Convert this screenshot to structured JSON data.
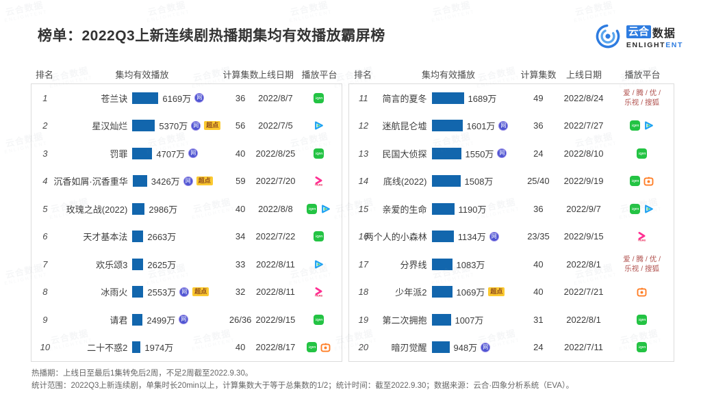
{
  "header": {
    "title": "榜单：2022Q3上新连续剧热播期集均有效播放霸屏榜"
  },
  "logo": {
    "cn_boxed": "云合",
    "cn_plain": "数据",
    "en_dark": "ENLIGHT",
    "en_accent": "ENT"
  },
  "columns": {
    "rank": "排名",
    "plays": "集均有效播放",
    "episodes": "计算集数",
    "date": "上线日期",
    "platform": "播放平台"
  },
  "badge_labels": {
    "net": "网",
    "sp": "超点"
  },
  "platform_labels": {
    "iqiyi": "iQIYI",
    "tencent": "腾讯视频",
    "youku": "YOUKU",
    "mango": "芒果TV"
  },
  "colors": {
    "bar": "#1266ad",
    "accent_blue": "#2e7ce0",
    "badge_net_bg": "#4f55d2",
    "badge_net_border": "#988ce6",
    "badge_sp_bg": "#fbc930",
    "badge_sp_text": "#8d4a1f",
    "platform_text": "#b0504d",
    "iqiyi_green": "#23c343",
    "tencent_blue": "#1fa3f2",
    "tencent_green": "#4ed17a",
    "youku_pink": "#ff2f92",
    "mango_orange": "#ff7e26"
  },
  "chart_data": {
    "type": "bar",
    "title": "2022Q3上新连续剧热播期集均有效播放霸屏榜",
    "ylabel": "集均有效播放",
    "unit": "万",
    "legend_position": "none",
    "grid": false,
    "items": [
      {
        "rank": 1,
        "title": "苍兰诀",
        "plays_wan": 6169,
        "plays_label": "6169万",
        "badges": [
          "net"
        ],
        "episodes": "36",
        "online_date": "2022/8/7",
        "platforms": [
          "iqiyi"
        ]
      },
      {
        "rank": 2,
        "title": "星汉灿烂",
        "plays_wan": 5370,
        "plays_label": "5370万",
        "badges": [
          "net",
          "sp"
        ],
        "episodes": "56",
        "online_date": "2022/7/5",
        "platforms": [
          "tencent"
        ]
      },
      {
        "rank": 3,
        "title": "罚罪",
        "plays_wan": 4707,
        "plays_label": "4707万",
        "badges": [
          "net"
        ],
        "episodes": "40",
        "online_date": "2022/8/25",
        "platforms": [
          "iqiyi"
        ]
      },
      {
        "rank": 4,
        "title": "沉香如屑·沉香重华",
        "plays_wan": 3426,
        "plays_label": "3426万",
        "badges": [
          "net",
          "sp"
        ],
        "episodes": "59",
        "online_date": "2022/7/20",
        "platforms": [
          "youku"
        ]
      },
      {
        "rank": 5,
        "title": "玫瑰之战(2022)",
        "plays_wan": 2986,
        "plays_label": "2986万",
        "badges": [],
        "episodes": "40",
        "online_date": "2022/8/8",
        "platforms": [
          "iqiyi",
          "tencent"
        ]
      },
      {
        "rank": 6,
        "title": "天才基本法",
        "plays_wan": 2663,
        "plays_label": "2663万",
        "badges": [],
        "episodes": "34",
        "online_date": "2022/7/22",
        "platforms": [
          "iqiyi"
        ]
      },
      {
        "rank": 7,
        "title": "欢乐颂3",
        "plays_wan": 2625,
        "plays_label": "2625万",
        "badges": [],
        "episodes": "33",
        "online_date": "2022/8/11",
        "platforms": [
          "tencent"
        ]
      },
      {
        "rank": 8,
        "title": "冰雨火",
        "plays_wan": 2553,
        "plays_label": "2553万",
        "badges": [
          "net",
          "sp"
        ],
        "episodes": "32",
        "online_date": "2022/8/11",
        "platforms": [
          "youku"
        ]
      },
      {
        "rank": 9,
        "title": "请君",
        "plays_wan": 2499,
        "plays_label": "2499万",
        "badges": [
          "net"
        ],
        "episodes": "26/36",
        "online_date": "2022/9/15",
        "platforms": [
          "iqiyi"
        ]
      },
      {
        "rank": 10,
        "title": "二十不惑2",
        "plays_wan": 1974,
        "plays_label": "1974万",
        "badges": [],
        "episodes": "40",
        "online_date": "2022/8/17",
        "platforms": [
          "iqiyi",
          "mango"
        ]
      },
      {
        "rank": 11,
        "title": "简言的夏冬",
        "plays_wan": 1689,
        "plays_label": "1689万",
        "badges": [],
        "episodes": "49",
        "online_date": "2022/8/24",
        "platforms": [],
        "platform_text": [
          "爱 / 腾 / 优 /",
          "乐视 / 搜狐"
        ]
      },
      {
        "rank": 12,
        "title": "迷航昆仑墟",
        "plays_wan": 1601,
        "plays_label": "1601万",
        "badges": [
          "net"
        ],
        "episodes": "36",
        "online_date": "2022/7/27",
        "platforms": [
          "iqiyi",
          "tencent"
        ]
      },
      {
        "rank": 13,
        "title": "民国大侦探",
        "plays_wan": 1550,
        "plays_label": "1550万",
        "badges": [
          "net"
        ],
        "episodes": "24",
        "online_date": "2022/8/10",
        "platforms": [
          "iqiyi"
        ]
      },
      {
        "rank": 14,
        "title": "底线(2022)",
        "plays_wan": 1508,
        "plays_label": "1508万",
        "badges": [],
        "episodes": "25/40",
        "online_date": "2022/9/19",
        "platforms": [
          "iqiyi",
          "mango"
        ]
      },
      {
        "rank": 15,
        "title": "亲爱的生命",
        "plays_wan": 1190,
        "plays_label": "1190万",
        "badges": [],
        "episodes": "36",
        "online_date": "2022/9/7",
        "platforms": [
          "iqiyi",
          "tencent"
        ]
      },
      {
        "rank": 16,
        "title": "两个人的小森林",
        "plays_wan": 1134,
        "plays_label": "1134万",
        "badges": [
          "net"
        ],
        "episodes": "23/35",
        "online_date": "2022/9/15",
        "platforms": [
          "youku"
        ]
      },
      {
        "rank": 17,
        "title": "分界线",
        "plays_wan": 1083,
        "plays_label": "1083万",
        "badges": [],
        "episodes": "40",
        "online_date": "2022/8/1",
        "platforms": [],
        "platform_text": [
          "爱 / 腾 / 优 /",
          "乐视 / 搜狐"
        ]
      },
      {
        "rank": 18,
        "title": "少年派2",
        "plays_wan": 1069,
        "plays_label": "1069万",
        "badges": [
          "sp"
        ],
        "episodes": "40",
        "online_date": "2022/7/21",
        "platforms": [
          "mango"
        ]
      },
      {
        "rank": 19,
        "title": "第二次拥抱",
        "plays_wan": 1007,
        "plays_label": "1007万",
        "badges": [],
        "episodes": "31",
        "online_date": "2022/8/1",
        "platforms": [
          "iqiyi"
        ]
      },
      {
        "rank": 20,
        "title": "暗刃觉醒",
        "plays_wan": 948,
        "plays_label": "948万",
        "badges": [
          "net"
        ],
        "episodes": "24",
        "online_date": "2022/7/11",
        "platforms": [
          "iqiyi"
        ]
      }
    ]
  },
  "footnotes": [
    "热播期：上线日至最后1集转免后2周，不足2周截至2022.9.30。",
    "统计范围：2022Q3上新连续剧，单集时长20min以上，计算集数大于等于总集数的1/2；统计时间：截至2022.9.30；数据来源：云合·四象分析系统（EVA）。"
  ],
  "watermark": {
    "line1": "云合数据",
    "line2": "ENLIGHTENT"
  }
}
